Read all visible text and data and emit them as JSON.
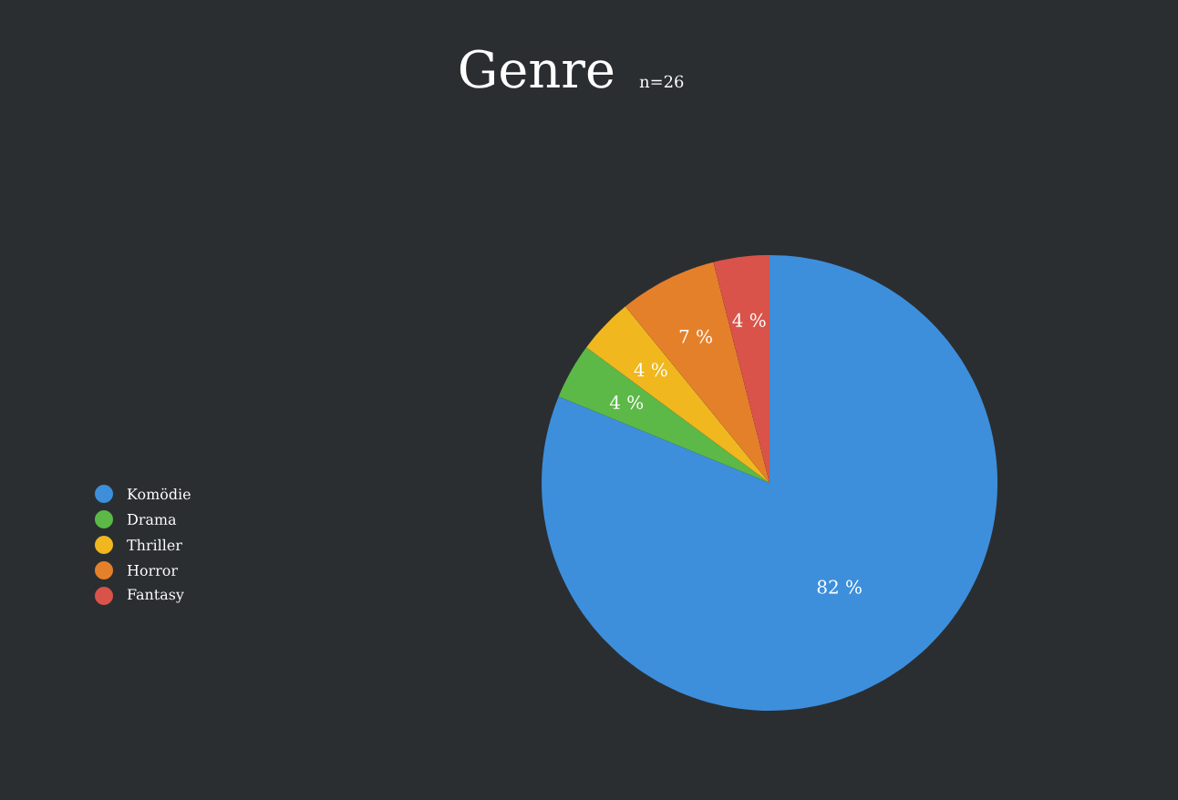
{
  "chart_data": {
    "type": "pie",
    "title": "Genre",
    "subtitle": "n=26",
    "categories": [
      "Komödie",
      "Drama",
      "Thriller",
      "Horror",
      "Fantasy"
    ],
    "values": [
      82,
      4,
      4,
      7,
      4
    ],
    "colors": [
      "#3d8fdc",
      "#5cb947",
      "#f0b71f",
      "#e5802a",
      "#d9534a"
    ],
    "value_labels": [
      "82 %",
      "4 %",
      "4 %",
      "7 %",
      "4 %"
    ],
    "legend": "left"
  }
}
